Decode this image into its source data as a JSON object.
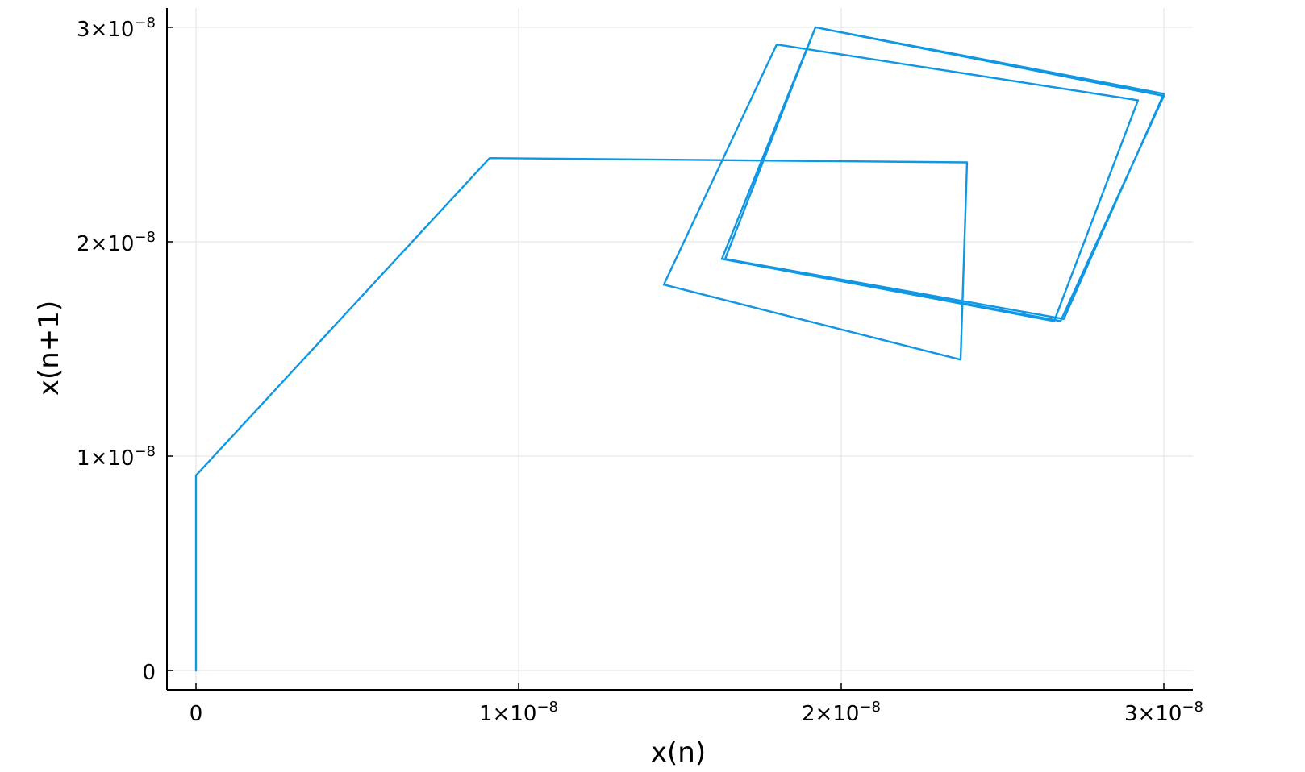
{
  "chart_data": {
    "type": "line",
    "title": "",
    "xlabel": "x(n)",
    "ylabel": "x(n+1)",
    "xlim": [
      -9e-10,
      3.09e-08
    ],
    "ylim": [
      -9e-10,
      3.09e-08
    ],
    "grid": true,
    "legend": "none",
    "x_ticks": [
      {
        "value": 0,
        "mantissa": "0",
        "exponent": ""
      },
      {
        "value": 1e-08,
        "mantissa": "1×10",
        "exponent": "−8"
      },
      {
        "value": 2e-08,
        "mantissa": "2×10",
        "exponent": "−8"
      },
      {
        "value": 3e-08,
        "mantissa": "3×10",
        "exponent": "−8"
      }
    ],
    "y_ticks": [
      {
        "value": 0,
        "mantissa": "0",
        "exponent": ""
      },
      {
        "value": 1e-08,
        "mantissa": "1×10",
        "exponent": "−8"
      },
      {
        "value": 2e-08,
        "mantissa": "2×10",
        "exponent": "−8"
      },
      {
        "value": 3e-08,
        "mantissa": "3×10",
        "exponent": "−8"
      }
    ],
    "series": [
      {
        "color": "#0F97E3",
        "x": [
          0,
          0,
          9.1e-09,
          2.39e-08,
          2.37e-08,
          1.45e-08,
          1.8e-08,
          2.92e-08,
          2.66e-08,
          1.63e-08,
          1.92e-08,
          3e-08,
          2.69e-08,
          1.64e-08,
          1.92e-08,
          3e-08,
          2.68e-08,
          1.63e-08,
          1.92e-08
        ],
        "y": [
          0,
          9.1e-09,
          2.39e-08,
          2.37e-08,
          1.45e-08,
          1.8e-08,
          2.92e-08,
          2.66e-08,
          1.63e-08,
          1.92e-08,
          3e-08,
          2.69e-08,
          1.64e-08,
          1.92e-08,
          3e-08,
          2.68e-08,
          1.63e-08,
          1.92e-08,
          3e-08
        ]
      }
    ]
  }
}
